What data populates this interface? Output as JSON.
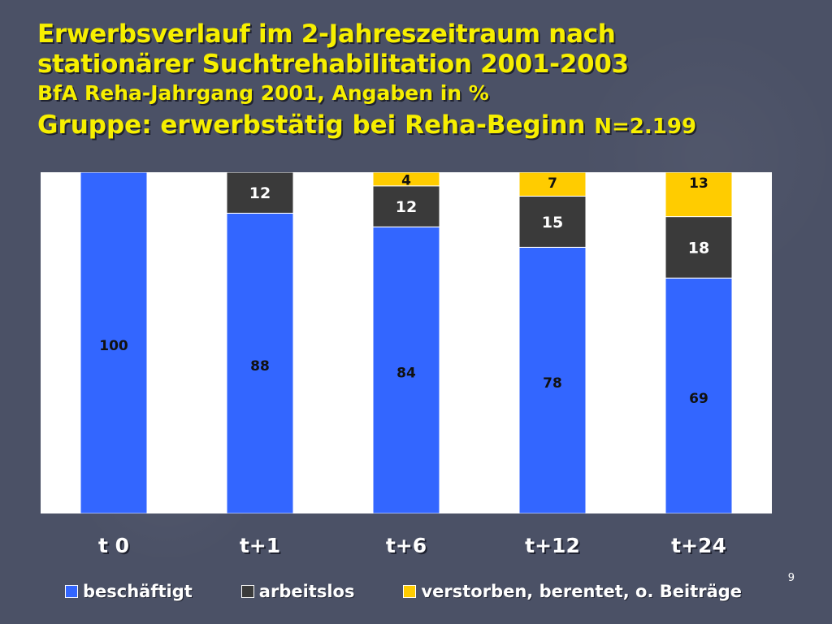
{
  "title": {
    "line1": "Erwerbsverlauf im 2-Jahreszeitraum nach",
    "line2": "stationärer Suchtrehabilitation 2001-2003",
    "line3": "BfA Reha-Jahrgang 2001, Angaben in %",
    "line4": "Gruppe: erwerbstätig bei Reha-Beginn",
    "line4_n": "N=2.199"
  },
  "page_number": "9",
  "colors": {
    "beschaeftigt": "#3366ff",
    "arbeitslos": "#3a3a3a",
    "verstorben": "#ffcc00"
  },
  "chart_data": {
    "type": "bar",
    "stacked": true,
    "title": "Gruppe: erwerbstätig bei Reha-Beginn",
    "categories": [
      "t 0",
      "t+1",
      "t+6",
      "t+12",
      "t+24"
    ],
    "ylim": [
      0,
      100
    ],
    "series": [
      {
        "name": "beschäftigt",
        "key": "beschaeftigt",
        "values": [
          100,
          88,
          84,
          78,
          69
        ]
      },
      {
        "name": "arbeitslos",
        "key": "arbeitslos",
        "values": [
          0,
          12,
          12,
          15,
          18
        ]
      },
      {
        "name": "verstorben, berentet, o. Beiträge",
        "key": "verstorben",
        "values": [
          0,
          0,
          4,
          7,
          13
        ]
      }
    ]
  }
}
